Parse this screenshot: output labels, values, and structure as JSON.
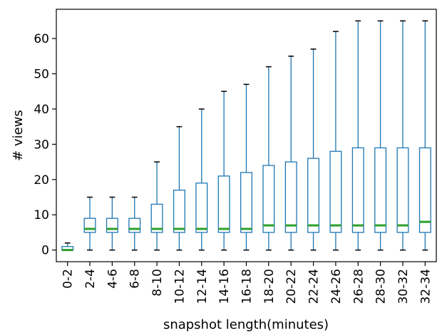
{
  "chart_data": {
    "type": "box",
    "title": "",
    "xlabel": "snapshot length(minutes)",
    "ylabel": "# views",
    "ylim": [
      -3.3,
      68.3
    ],
    "yticks": [
      0,
      10,
      20,
      30,
      40,
      50,
      60
    ],
    "grid": false,
    "legend": "none",
    "colors": {
      "box": "#1f77b4",
      "median": "#2ca02c",
      "whisker_cap": "#000000",
      "axes": "#000000"
    },
    "categories": [
      "0-2",
      "2-4",
      "4-6",
      "6-8",
      "8-10",
      "10-12",
      "12-14",
      "14-16",
      "16-18",
      "18-20",
      "20-22",
      "22-24",
      "24-26",
      "26-28",
      "28-30",
      "30-32",
      "32-34"
    ],
    "boxes": [
      {
        "min": 0,
        "q1": 0,
        "median": 0,
        "q3": 1,
        "max": 2
      },
      {
        "min": 0,
        "q1": 5,
        "median": 6,
        "q3": 9,
        "max": 15
      },
      {
        "min": 0,
        "q1": 5,
        "median": 6,
        "q3": 9,
        "max": 15
      },
      {
        "min": 0,
        "q1": 5,
        "median": 6,
        "q3": 9,
        "max": 15
      },
      {
        "min": 0,
        "q1": 5,
        "median": 6,
        "q3": 13,
        "max": 25
      },
      {
        "min": 0,
        "q1": 5,
        "median": 6,
        "q3": 17,
        "max": 35
      },
      {
        "min": 0,
        "q1": 5,
        "median": 6,
        "q3": 19,
        "max": 40
      },
      {
        "min": 0,
        "q1": 5,
        "median": 6,
        "q3": 21,
        "max": 45
      },
      {
        "min": 0,
        "q1": 5,
        "median": 6,
        "q3": 22,
        "max": 47
      },
      {
        "min": 0,
        "q1": 5,
        "median": 7,
        "q3": 24,
        "max": 52
      },
      {
        "min": 0,
        "q1": 5,
        "median": 7,
        "q3": 25,
        "max": 55
      },
      {
        "min": 0,
        "q1": 5,
        "median": 7,
        "q3": 26,
        "max": 57
      },
      {
        "min": 0,
        "q1": 5,
        "median": 7,
        "q3": 28,
        "max": 62
      },
      {
        "min": 0,
        "q1": 5,
        "median": 7,
        "q3": 29,
        "max": 65
      },
      {
        "min": 0,
        "q1": 5,
        "median": 7,
        "q3": 29,
        "max": 65
      },
      {
        "min": 0,
        "q1": 5,
        "median": 7,
        "q3": 29,
        "max": 65
      },
      {
        "min": 0,
        "q1": 5,
        "median": 8,
        "q3": 29,
        "max": 65
      }
    ]
  }
}
